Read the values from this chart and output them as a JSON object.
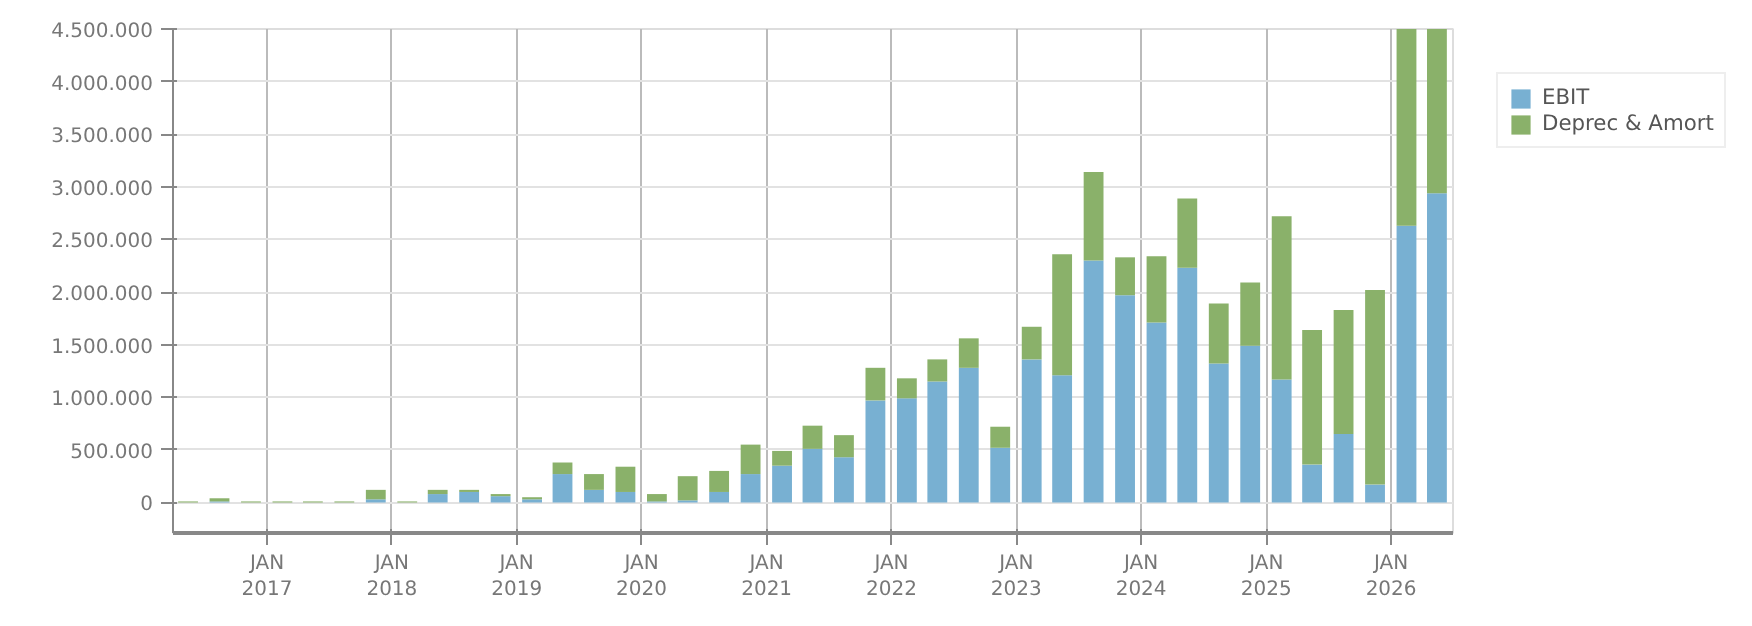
{
  "chart_data": {
    "type": "bar",
    "stacked": true,
    "x": [
      "2016-05-15",
      "2016-08-15",
      "2016-11-15",
      "2017-02-15",
      "2017-05-15",
      "2017-08-15",
      "2017-11-15",
      "2018-02-15",
      "2018-05-15",
      "2018-08-15",
      "2018-11-15",
      "2019-02-15",
      "2019-05-15",
      "2019-08-15",
      "2019-11-15",
      "2020-02-15",
      "2020-05-15",
      "2020-08-15",
      "2020-11-15",
      "2021-02-15",
      "2021-05-15",
      "2021-08-15",
      "2021-11-15",
      "2022-02-15",
      "2022-05-15",
      "2022-08-15",
      "2022-11-15",
      "2023-02-15",
      "2023-05-15",
      "2023-08-15",
      "2023-11-15",
      "2024-02-15",
      "2024-05-15",
      "2024-08-15",
      "2024-11-15",
      "2025-02-15",
      "2025-05-15",
      "2025-08-15",
      "2025-11-15",
      "2026-02-15",
      "2026-05-15"
    ],
    "series": [
      {
        "name": "EBIT",
        "color": "#78b0d2",
        "values": [
          0,
          10000,
          0,
          0,
          0,
          0,
          30000,
          0,
          80000,
          100000,
          60000,
          30000,
          270000,
          120000,
          100000,
          10000,
          20000,
          100000,
          270000,
          350000,
          510000,
          430000,
          970000,
          990000,
          1150000,
          1280000,
          520000,
          1360000,
          1210000,
          2300000,
          1970000,
          1710000,
          2230000,
          1320000,
          1490000,
          1170000,
          360000,
          650000,
          170000,
          2630000,
          2940000
        ]
      },
      {
        "name": "Deprec & Amort",
        "color": "#8ab16a",
        "values": [
          10000,
          30000,
          10000,
          10000,
          10000,
          10000,
          90000,
          10000,
          40000,
          20000,
          20000,
          20000,
          110000,
          150000,
          240000,
          70000,
          230000,
          200000,
          280000,
          140000,
          220000,
          210000,
          310000,
          190000,
          210000,
          280000,
          200000,
          310000,
          1150000,
          840000,
          360000,
          630000,
          660000,
          570000,
          600000,
          1550000,
          1280000,
          1180000,
          1850000,
          1870000,
          1560000
        ]
      }
    ],
    "xlim": [
      "2016-04-01",
      "2026-07-01"
    ],
    "xticks": [
      {
        "value": "2017-01-01",
        "label": "JAN\n2017"
      },
      {
        "value": "2018-01-01",
        "label": "JAN\n2018"
      },
      {
        "value": "2019-01-01",
        "label": "JAN\n2019"
      },
      {
        "value": "2020-01-01",
        "label": "JAN\n2020"
      },
      {
        "value": "2021-01-01",
        "label": "JAN\n2021"
      },
      {
        "value": "2022-01-01",
        "label": "JAN\n2022"
      },
      {
        "value": "2023-01-01",
        "label": "JAN\n2023"
      },
      {
        "value": "2024-01-01",
        "label": "JAN\n2024"
      },
      {
        "value": "2025-01-01",
        "label": "JAN\n2025"
      },
      {
        "value": "2026-01-01",
        "label": "JAN\n2026"
      }
    ],
    "ylim": [
      -290000,
      4500000
    ],
    "yticks": [
      0,
      {
        "value": 500000,
        "label": "500.000"
      },
      {
        "value": 1000000,
        "label": "1.000.000"
      },
      {
        "value": 1500000,
        "label": "1.500.000"
      },
      {
        "value": 2000000,
        "label": "2.000.000"
      },
      {
        "value": 2500000,
        "label": "2.500.000"
      },
      {
        "value": 3000000,
        "label": "3.000.000"
      },
      {
        "value": 3500000,
        "label": "3.500.000"
      },
      {
        "value": 4000000,
        "label": "4.000.000"
      },
      {
        "value": 4500000,
        "label": "4.500.000"
      }
    ],
    "grid": true,
    "legend": "top right"
  }
}
